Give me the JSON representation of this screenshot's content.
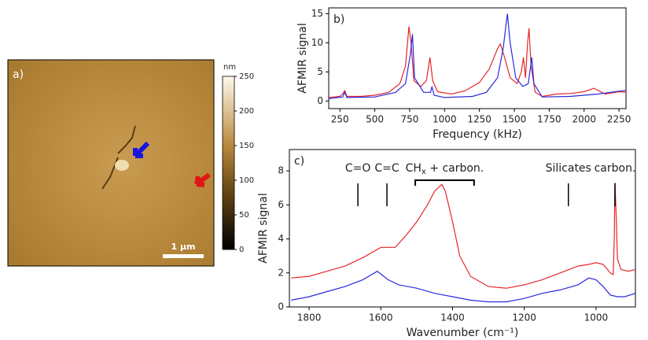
{
  "chart_data": [
    {
      "type": "image",
      "panel": "a)",
      "scalebar": "1 µm",
      "colorbar": {
        "label": "nm",
        "lim": [
          0,
          250
        ],
        "ticks": [
          0,
          50,
          100,
          150,
          200,
          250
        ]
      }
    },
    {
      "type": "line",
      "panel": "b)",
      "xlabel": "Frequency (kHz)",
      "ylabel": "AFMIR signal",
      "xlim": [
        170,
        2300
      ],
      "xticks": [
        250,
        500,
        750,
        1000,
        1250,
        1500,
        1750,
        2000,
        2250
      ],
      "ylim": [
        -1.3,
        16
      ],
      "yticks": [
        0,
        5,
        10,
        15
      ],
      "series": [
        {
          "color": "#e8262a",
          "x": [
            170,
            250,
            270,
            285,
            300,
            400,
            500,
            600,
            680,
            720,
            745,
            760,
            780,
            830,
            870,
            895,
            915,
            950,
            1050,
            1150,
            1250,
            1320,
            1380,
            1400,
            1430,
            1470,
            1520,
            1550,
            1565,
            1580,
            1595,
            1605,
            1620,
            1650,
            1700,
            1800,
            1900,
            2000,
            2070,
            2150,
            2250,
            2300
          ],
          "values": [
            0.6,
            0.8,
            1.2,
            1.8,
            0.8,
            0.8,
            1,
            1.5,
            3,
            6,
            12.8,
            10,
            3.5,
            2.5,
            3.5,
            7.5,
            3.5,
            1.6,
            1.2,
            1.8,
            3.2,
            5.5,
            9,
            9.8,
            7.5,
            4,
            3,
            5,
            7.5,
            4,
            10,
            12.5,
            6,
            1.5,
            0.8,
            1.2,
            1.3,
            1.6,
            2.2,
            1.2,
            1.6,
            1.5
          ]
        },
        {
          "color": "#2a2ae0",
          "x": [
            170,
            270,
            285,
            300,
            500,
            650,
            720,
            755,
            770,
            785,
            850,
            900,
            910,
            925,
            1000,
            1200,
            1300,
            1380,
            1420,
            1450,
            1470,
            1510,
            1560,
            1600,
            1625,
            1640,
            1700,
            1900,
            2100,
            2250,
            2300
          ],
          "values": [
            0.4,
            0.7,
            1.5,
            0.6,
            0.7,
            1.5,
            3,
            8,
            11.5,
            4,
            1.5,
            1.5,
            2.5,
            1,
            0.6,
            0.8,
            1.5,
            4,
            9,
            15,
            10,
            4,
            2.5,
            3,
            7.5,
            3,
            0.7,
            0.8,
            1.2,
            1.7,
            1.8
          ]
        }
      ]
    },
    {
      "type": "line",
      "panel": "c)",
      "xlabel": "Wavenumber (cm⁻¹)",
      "ylabel": "AFMIR signal",
      "xlim": [
        1855,
        890
      ],
      "xticks": [
        1800,
        1600,
        1400,
        1200,
        1000
      ],
      "ylim": [
        0,
        9.25
      ],
      "yticks": [
        0,
        2,
        4,
        6,
        8
      ],
      "annotations": [
        {
          "text": "C=O",
          "x": 1664
        },
        {
          "text": "C=C",
          "x": 1583
        },
        {
          "text": "CH",
          "sub": "x",
          "rest": " + carbon.",
          "x": [
            1504,
            1340
          ]
        },
        {
          "text": "Silicates",
          "x": 1077
        },
        {
          "text": "carbon.",
          "x": 947
        }
      ],
      "series": [
        {
          "color": "#e8262a",
          "x": [
            1850,
            1800,
            1750,
            1700,
            1650,
            1600,
            1560,
            1530,
            1500,
            1470,
            1450,
            1430,
            1420,
            1400,
            1380,
            1350,
            1300,
            1250,
            1200,
            1150,
            1100,
            1050,
            1020,
            1000,
            980,
            960,
            952,
            949,
            947,
            944,
            940,
            930,
            910,
            890
          ],
          "values": [
            1.7,
            1.8,
            2.1,
            2.4,
            2.9,
            3.5,
            3.5,
            4.2,
            5,
            6,
            6.8,
            7.2,
            6.8,
            5,
            3,
            1.8,
            1.2,
            1.1,
            1.3,
            1.6,
            2,
            2.4,
            2.5,
            2.6,
            2.5,
            2,
            1.9,
            4,
            7.3,
            5.5,
            2.8,
            2.2,
            2.1,
            2.2
          ]
        },
        {
          "color": "#2a2ae0",
          "x": [
            1850,
            1800,
            1750,
            1700,
            1650,
            1610,
            1580,
            1550,
            1500,
            1450,
            1400,
            1350,
            1300,
            1250,
            1200,
            1150,
            1100,
            1050,
            1020,
            1000,
            980,
            960,
            940,
            920,
            890
          ],
          "values": [
            0.4,
            0.6,
            0.9,
            1.2,
            1.6,
            2.1,
            1.6,
            1.3,
            1.1,
            0.8,
            0.6,
            0.4,
            0.3,
            0.3,
            0.5,
            0.8,
            1,
            1.3,
            1.7,
            1.6,
            1.2,
            0.7,
            0.6,
            0.6,
            0.8
          ]
        }
      ]
    }
  ]
}
